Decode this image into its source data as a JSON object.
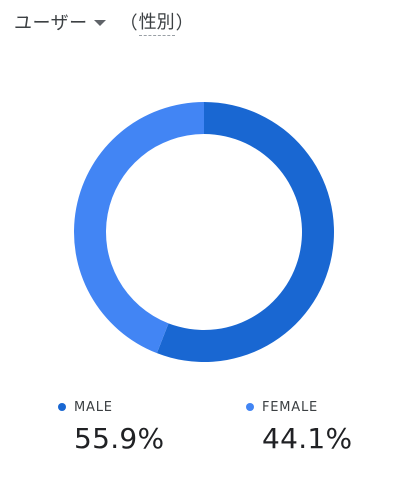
{
  "header": {
    "metric_label": "ユーザー",
    "dimension_open": "（",
    "dimension_label": "性別",
    "dimension_close": "）"
  },
  "colors": {
    "male": "#1967d2",
    "female": "#4285f4"
  },
  "chart_data": {
    "type": "pie",
    "style": "donut",
    "categories": [
      "MALE",
      "FEMALE"
    ],
    "values": [
      55.9,
      44.1
    ],
    "value_labels": [
      "55.9%",
      "44.1%"
    ],
    "legend_position": "bottom"
  }
}
